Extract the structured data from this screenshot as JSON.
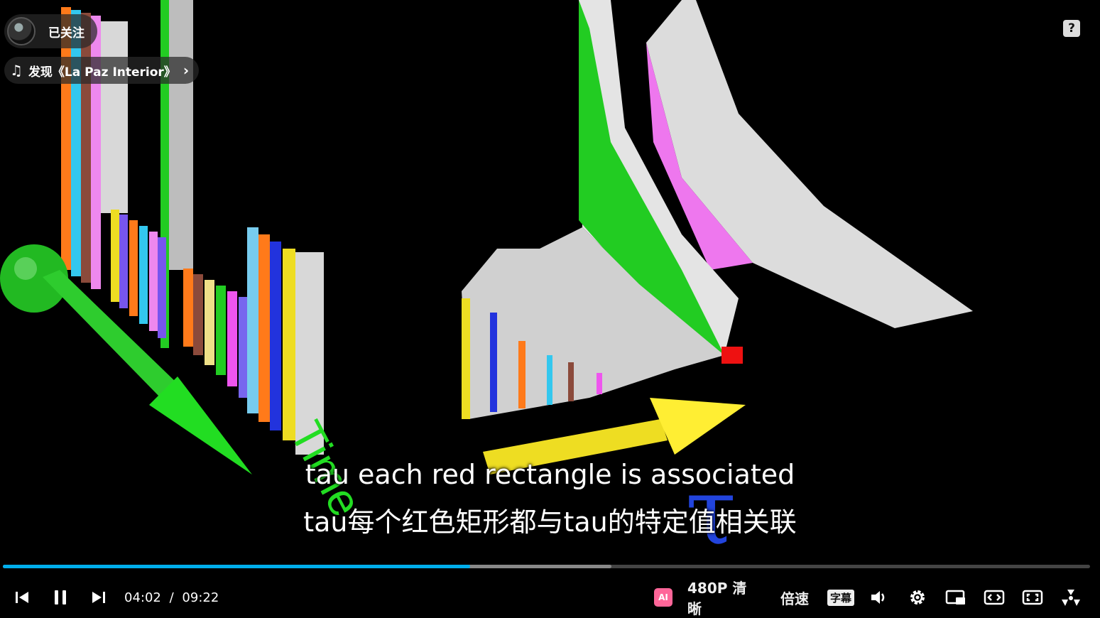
{
  "uploader": {
    "follow_label": "已关注"
  },
  "music": {
    "label": "发现《La Paz Interior》",
    "note_icon": "music-note-icon",
    "chevron_icon": "chevron-right-icon"
  },
  "help": {
    "label": "?"
  },
  "subtitles": {
    "en": "tau each red rectangle is associated",
    "zh": "tau每个红色矩形都与tau的特定值相关联"
  },
  "video_labels": {
    "time_axis": "Time",
    "tau_axis": "τ"
  },
  "playback": {
    "current": "04:02",
    "separator": "/",
    "duration": "09:22",
    "progress_fraction": 0.43,
    "buffered_fraction": 0.56
  },
  "controls": {
    "quality": "480P 清晰",
    "speed": "倍速",
    "subtitle": "字幕",
    "ai_label": "AI"
  },
  "colors": {
    "accent": "#00aeec",
    "ai_badge": "#ff6699"
  }
}
